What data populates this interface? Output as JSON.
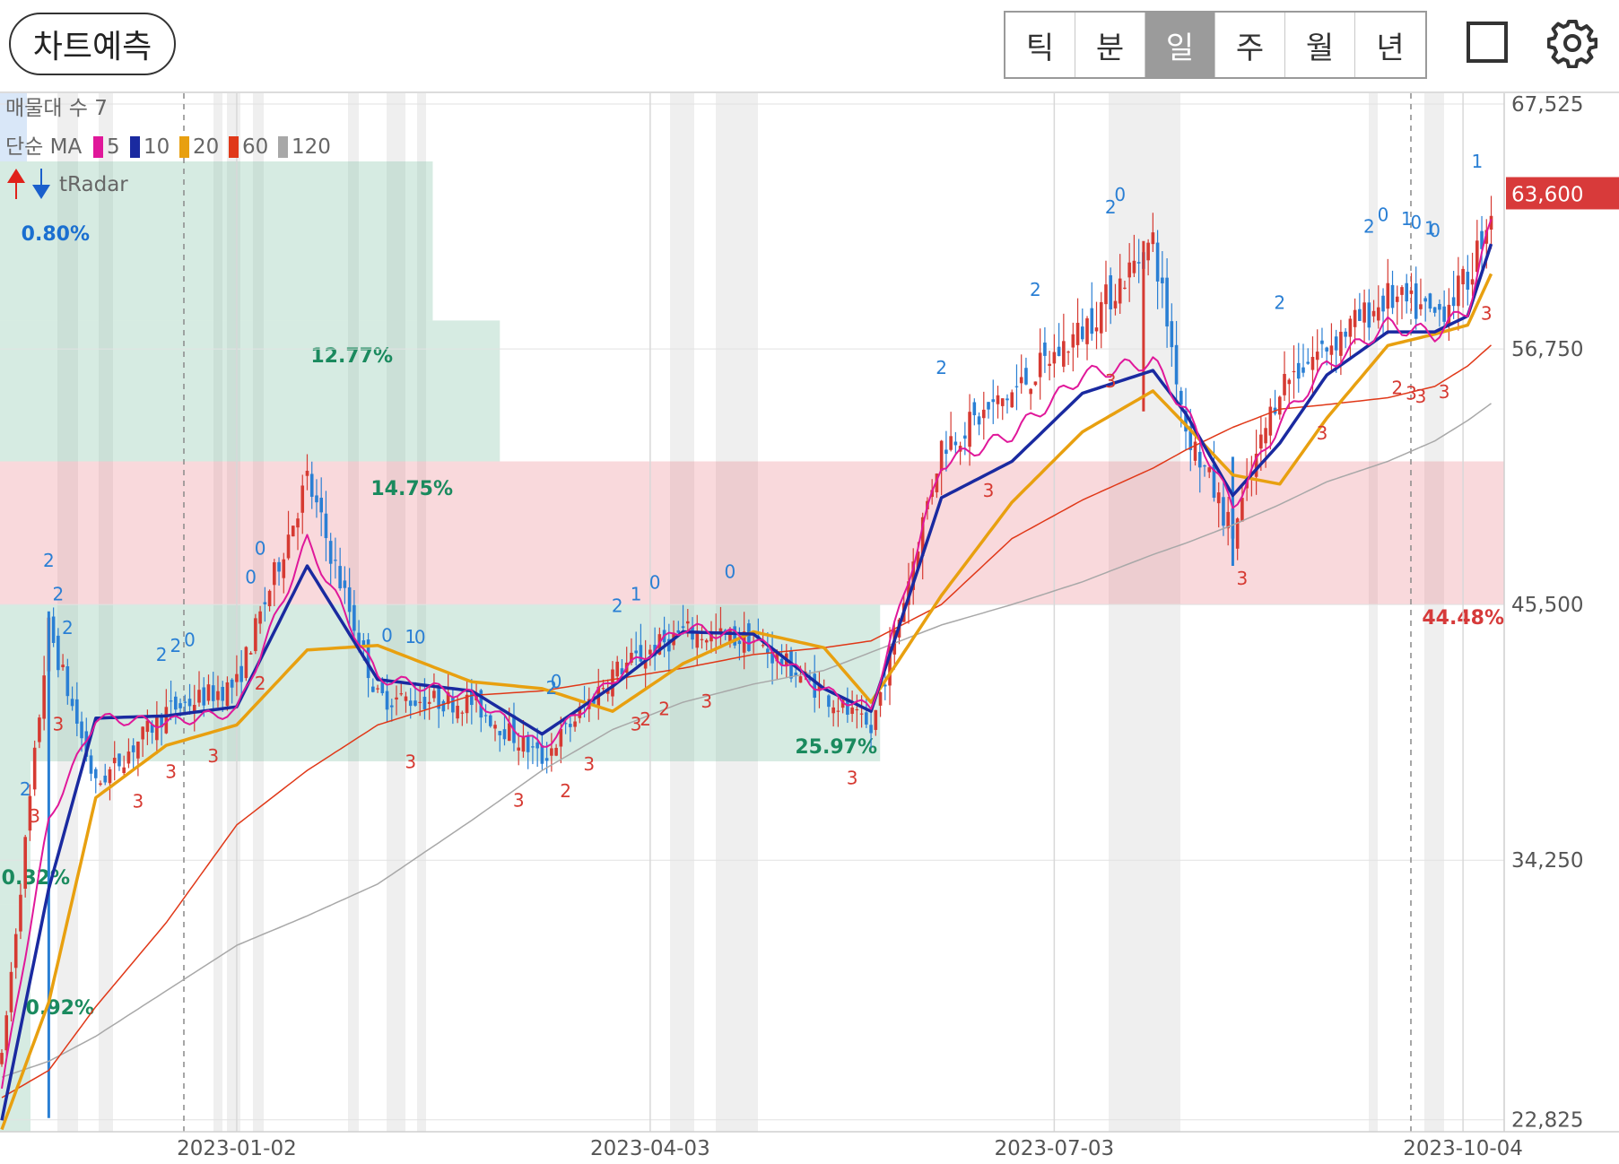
{
  "header": {
    "predict_label": "차트예측",
    "tabs": [
      {
        "label": "틱",
        "active": false
      },
      {
        "label": "분",
        "active": false
      },
      {
        "label": "일",
        "active": true
      },
      {
        "label": "주",
        "active": false
      },
      {
        "label": "월",
        "active": false
      },
      {
        "label": "년",
        "active": false
      }
    ],
    "fullscreen_icon": "square-icon",
    "settings_icon": "gear-icon"
  },
  "chart_data": {
    "type": "candlestick",
    "legend": {
      "volume_profile": "매물대 수 7",
      "ma_label": "단순 MA",
      "ma": [
        {
          "period": "5",
          "color": "#e0189a"
        },
        {
          "period": "10",
          "color": "#1a2aa0"
        },
        {
          "period": "20",
          "color": "#e8a010"
        },
        {
          "period": "60",
          "color": "#e03818"
        },
        {
          "period": "120",
          "color": "#a8a8a8"
        }
      ],
      "indicator": "tRadar"
    },
    "y_ticks": [
      "67,525",
      "56,750",
      "45,500",
      "34,250",
      "22,825"
    ],
    "y_tick_values": [
      67525,
      56750,
      45500,
      34250,
      22825
    ],
    "ylim": [
      22300,
      68000
    ],
    "x_ticks": [
      "2023-01-02",
      "2023-04-03",
      "2023-07-03",
      "2023-10-04"
    ],
    "last_price": {
      "label": "63,600",
      "value": 63600,
      "color": "#d83a3a"
    },
    "volume_profile": [
      {
        "from": 58000,
        "to": 65000,
        "pct": "12.77%",
        "share": 0.2877,
        "color": "green"
      },
      {
        "from": 51800,
        "to": 58000,
        "pct": "14.75%",
        "share": 0.3323,
        "color": "green"
      },
      {
        "from": 45500,
        "to": 51800,
        "pct": "44.48%",
        "share": 1.0,
        "color": "red"
      },
      {
        "from": 38600,
        "to": 45500,
        "pct": "25.97%",
        "share": 0.5851,
        "color": "green"
      },
      {
        "from": 32300,
        "to": 38600,
        "pct": "0.32%",
        "share": 0.0072,
        "color": "green"
      },
      {
        "from": 22300,
        "to": 32300,
        "pct": "0.92%",
        "share": 0.0207,
        "color": "green"
      },
      {
        "from": 65000,
        "to": 68000,
        "pct": "0.80%",
        "share": 0.018,
        "color": "blue"
      }
    ],
    "ma_series": {
      "ma5": [
        [
          0,
          24200
        ],
        [
          10,
          36000
        ],
        [
          20,
          40500
        ],
        [
          35,
          40300
        ],
        [
          50,
          40800
        ],
        [
          65,
          48300
        ],
        [
          80,
          42300
        ],
        [
          100,
          41500
        ],
        [
          115,
          39200
        ],
        [
          130,
          42200
        ],
        [
          145,
          44500
        ],
        [
          160,
          44000
        ],
        [
          175,
          41700
        ],
        [
          185,
          40900
        ],
        [
          200,
          51700
        ],
        [
          215,
          53000
        ],
        [
          230,
          55600
        ],
        [
          245,
          56200
        ],
        [
          252,
          54000
        ],
        [
          262,
          49800
        ],
        [
          272,
          53500
        ],
        [
          282,
          56000
        ],
        [
          295,
          57800
        ],
        [
          305,
          57400
        ],
        [
          312,
          58500
        ],
        [
          318,
          63000
        ]
      ],
      "ma10": [
        [
          0,
          22800
        ],
        [
          10,
          33000
        ],
        [
          20,
          40500
        ],
        [
          35,
          40600
        ],
        [
          50,
          41000
        ],
        [
          65,
          47200
        ],
        [
          80,
          42200
        ],
        [
          100,
          41700
        ],
        [
          115,
          39800
        ],
        [
          130,
          41900
        ],
        [
          145,
          44300
        ],
        [
          160,
          44200
        ],
        [
          175,
          41800
        ],
        [
          185,
          40800
        ],
        [
          200,
          50200
        ],
        [
          215,
          51800
        ],
        [
          230,
          54800
        ],
        [
          245,
          55800
        ],
        [
          252,
          53900
        ],
        [
          262,
          50300
        ],
        [
          272,
          52600
        ],
        [
          282,
          55600
        ],
        [
          295,
          57500
        ],
        [
          305,
          57500
        ],
        [
          312,
          58200
        ],
        [
          318,
          62000
        ]
      ],
      "ma20": [
        [
          0,
          22400
        ],
        [
          10,
          28000
        ],
        [
          20,
          37000
        ],
        [
          35,
          39300
        ],
        [
          50,
          40200
        ],
        [
          65,
          43500
        ],
        [
          80,
          43700
        ],
        [
          100,
          42100
        ],
        [
          115,
          41800
        ],
        [
          130,
          40800
        ],
        [
          145,
          42900
        ],
        [
          160,
          44300
        ],
        [
          175,
          43600
        ],
        [
          185,
          41200
        ],
        [
          200,
          45900
        ],
        [
          215,
          50000
        ],
        [
          230,
          53100
        ],
        [
          245,
          54900
        ],
        [
          252,
          53400
        ],
        [
          262,
          51200
        ],
        [
          272,
          50800
        ],
        [
          282,
          53700
        ],
        [
          295,
          56900
        ],
        [
          305,
          57400
        ],
        [
          312,
          57800
        ],
        [
          318,
          60500
        ]
      ],
      "ma60": [
        [
          0,
          23800
        ],
        [
          10,
          25000
        ],
        [
          20,
          27800
        ],
        [
          35,
          31500
        ],
        [
          50,
          35800
        ],
        [
          65,
          38200
        ],
        [
          80,
          40200
        ],
        [
          100,
          41500
        ],
        [
          115,
          41700
        ],
        [
          130,
          42200
        ],
        [
          145,
          42700
        ],
        [
          160,
          43300
        ],
        [
          175,
          43600
        ],
        [
          185,
          43900
        ],
        [
          200,
          45500
        ],
        [
          215,
          48400
        ],
        [
          230,
          50100
        ],
        [
          245,
          51500
        ],
        [
          252,
          52300
        ],
        [
          262,
          53300
        ],
        [
          272,
          54100
        ],
        [
          282,
          54300
        ],
        [
          295,
          54600
        ],
        [
          305,
          55100
        ],
        [
          312,
          56000
        ],
        [
          318,
          57100
        ]
      ],
      "ma120": [
        [
          0,
          24700
        ],
        [
          10,
          25400
        ],
        [
          20,
          26500
        ],
        [
          35,
          28500
        ],
        [
          50,
          30500
        ],
        [
          65,
          31800
        ],
        [
          80,
          33200
        ],
        [
          100,
          36000
        ],
        [
          115,
          38200
        ],
        [
          130,
          40000
        ],
        [
          145,
          41200
        ],
        [
          160,
          42000
        ],
        [
          175,
          42600
        ],
        [
          185,
          43400
        ],
        [
          200,
          44600
        ],
        [
          215,
          45500
        ],
        [
          230,
          46500
        ],
        [
          245,
          47700
        ],
        [
          252,
          48200
        ],
        [
          262,
          49000
        ],
        [
          272,
          49900
        ],
        [
          282,
          50900
        ],
        [
          295,
          51800
        ],
        [
          305,
          52700
        ],
        [
          312,
          53600
        ],
        [
          318,
          54500
        ]
      ]
    },
    "price_path": [
      [
        0,
        25500
      ],
      [
        10,
        44500
      ],
      [
        20,
        37500
      ],
      [
        35,
        40800
      ],
      [
        50,
        42000
      ],
      [
        65,
        51000
      ],
      [
        80,
        41400
      ],
      [
        100,
        41200
      ],
      [
        115,
        38700
      ],
      [
        130,
        42500
      ],
      [
        145,
        44300
      ],
      [
        160,
        43900
      ],
      [
        175,
        41600
      ],
      [
        185,
        39900
      ],
      [
        200,
        52500
      ],
      [
        215,
        54800
      ],
      [
        230,
        57600
      ],
      [
        245,
        61500
      ],
      [
        252,
        53300
      ],
      [
        262,
        48600
      ],
      [
        272,
        55200
      ],
      [
        282,
        56900
      ],
      [
        295,
        59000
      ],
      [
        305,
        58200
      ],
      [
        312,
        59800
      ],
      [
        318,
        63600
      ]
    ],
    "signals": [
      {
        "i": 10,
        "label": "2",
        "kind": "top"
      },
      {
        "i": 14,
        "label": "2",
        "kind": "top"
      },
      {
        "i": 12,
        "label": "2",
        "kind": "top"
      },
      {
        "i": 7,
        "label": "3",
        "kind": "bottom"
      },
      {
        "i": 12,
        "label": "3",
        "kind": "bottom"
      },
      {
        "i": 5,
        "label": "2",
        "kind": "top"
      },
      {
        "i": 29,
        "label": "3",
        "kind": "bottom"
      },
      {
        "i": 34,
        "label": "2",
        "kind": "top"
      },
      {
        "i": 37,
        "label": "2",
        "kind": "top"
      },
      {
        "i": 36,
        "label": "3",
        "kind": "bottom"
      },
      {
        "i": 40,
        "label": "0",
        "kind": "top"
      },
      {
        "i": 45,
        "label": "3",
        "kind": "bottom"
      },
      {
        "i": 53,
        "label": "0",
        "kind": "top"
      },
      {
        "i": 55,
        "label": "0",
        "kind": "top"
      },
      {
        "i": 55,
        "label": "2",
        "kind": "bottom"
      },
      {
        "i": 82,
        "label": "0",
        "kind": "top"
      },
      {
        "i": 87,
        "label": "1",
        "kind": "top"
      },
      {
        "i": 89,
        "label": "0",
        "kind": "top"
      },
      {
        "i": 87,
        "label": "3",
        "kind": "bottom"
      },
      {
        "i": 110,
        "label": "3",
        "kind": "bottom"
      },
      {
        "i": 117,
        "label": "2",
        "kind": "top"
      },
      {
        "i": 118,
        "label": "0",
        "kind": "top"
      },
      {
        "i": 120,
        "label": "2",
        "kind": "bottom"
      },
      {
        "i": 125,
        "label": "3",
        "kind": "bottom"
      },
      {
        "i": 131,
        "label": "2",
        "kind": "top"
      },
      {
        "i": 135,
        "label": "1",
        "kind": "top"
      },
      {
        "i": 139,
        "label": "0",
        "kind": "top"
      },
      {
        "i": 135,
        "label": "3",
        "kind": "bottom"
      },
      {
        "i": 137,
        "label": "2",
        "kind": "bottom"
      },
      {
        "i": 141,
        "label": "2",
        "kind": "bottom"
      },
      {
        "i": 150,
        "label": "3",
        "kind": "bottom"
      },
      {
        "i": 155,
        "label": "0",
        "kind": "top"
      },
      {
        "i": 181,
        "label": "3",
        "kind": "bottom"
      },
      {
        "i": 200,
        "label": "2",
        "kind": "top"
      },
      {
        "i": 210,
        "label": "3",
        "kind": "bottom"
      },
      {
        "i": 220,
        "label": "2",
        "kind": "top"
      },
      {
        "i": 236,
        "label": "2",
        "kind": "top"
      },
      {
        "i": 236,
        "label": "3",
        "kind": "bottom"
      },
      {
        "i": 238,
        "label": "0",
        "kind": "top"
      },
      {
        "i": 264,
        "label": "3",
        "kind": "bottom"
      },
      {
        "i": 272,
        "label": "2",
        "kind": "top"
      },
      {
        "i": 281,
        "label": "3",
        "kind": "bottom"
      },
      {
        "i": 291,
        "label": "2",
        "kind": "top"
      },
      {
        "i": 294,
        "label": "0",
        "kind": "top"
      },
      {
        "i": 297,
        "label": "2",
        "kind": "bottom"
      },
      {
        "i": 299,
        "label": "1",
        "kind": "top"
      },
      {
        "i": 301,
        "label": "0",
        "kind": "top"
      },
      {
        "i": 300,
        "label": "3",
        "kind": "bottom"
      },
      {
        "i": 302,
        "label": "3",
        "kind": "bottom"
      },
      {
        "i": 304,
        "label": "1",
        "kind": "top"
      },
      {
        "i": 305,
        "label": "0",
        "kind": "top"
      },
      {
        "i": 307,
        "label": "3",
        "kind": "bottom"
      },
      {
        "i": 314,
        "label": "1",
        "kind": "top"
      },
      {
        "i": 316,
        "label": "3",
        "kind": "bottom"
      }
    ]
  }
}
